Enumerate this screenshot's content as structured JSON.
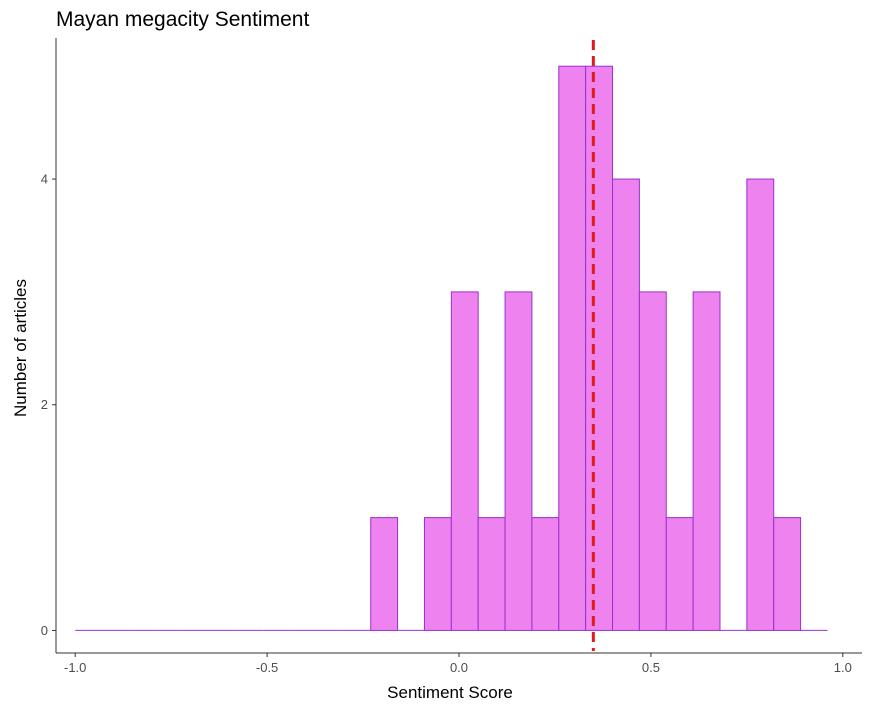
{
  "chart_data": {
    "type": "histogram",
    "title": "Mayan megacity Sentiment",
    "xlabel": "Sentiment Score",
    "ylabel": "Number of articles",
    "xlim": [
      -1.05,
      1.05
    ],
    "ylim": [
      -0.2,
      5.25
    ],
    "x_ticks": [
      -1.0,
      -0.5,
      0.0,
      0.5,
      1.0
    ],
    "x_tick_labels": [
      "-1.0",
      "-0.5",
      "0.0",
      "0.5",
      "1.0"
    ],
    "y_ticks": [
      0,
      2,
      4
    ],
    "y_tick_labels": [
      "0",
      "2",
      "4"
    ],
    "bin_width": 0.07,
    "bins": [
      {
        "x_start": -1.0,
        "x_end": -0.93,
        "count": 0
      },
      {
        "x_start": -0.93,
        "x_end": -0.86,
        "count": 0
      },
      {
        "x_start": -0.86,
        "x_end": -0.79,
        "count": 0
      },
      {
        "x_start": -0.79,
        "x_end": -0.72,
        "count": 0
      },
      {
        "x_start": -0.72,
        "x_end": -0.65,
        "count": 0
      },
      {
        "x_start": -0.65,
        "x_end": -0.58,
        "count": 0
      },
      {
        "x_start": -0.58,
        "x_end": -0.51,
        "count": 0
      },
      {
        "x_start": -0.51,
        "x_end": -0.44,
        "count": 0
      },
      {
        "x_start": -0.44,
        "x_end": -0.37,
        "count": 0
      },
      {
        "x_start": -0.37,
        "x_end": -0.3,
        "count": 0
      },
      {
        "x_start": -0.3,
        "x_end": -0.23,
        "count": 0
      },
      {
        "x_start": -0.23,
        "x_end": -0.16,
        "count": 1
      },
      {
        "x_start": -0.16,
        "x_end": -0.09,
        "count": 0
      },
      {
        "x_start": -0.09,
        "x_end": -0.02,
        "count": 1
      },
      {
        "x_start": -0.02,
        "x_end": 0.05,
        "count": 3
      },
      {
        "x_start": 0.05,
        "x_end": 0.12,
        "count": 1
      },
      {
        "x_start": 0.12,
        "x_end": 0.19,
        "count": 3
      },
      {
        "x_start": 0.19,
        "x_end": 0.26,
        "count": 1
      },
      {
        "x_start": 0.26,
        "x_end": 0.33,
        "count": 5
      },
      {
        "x_start": 0.33,
        "x_end": 0.4,
        "count": 5
      },
      {
        "x_start": 0.4,
        "x_end": 0.47,
        "count": 4
      },
      {
        "x_start": 0.47,
        "x_end": 0.54,
        "count": 3
      },
      {
        "x_start": 0.54,
        "x_end": 0.61,
        "count": 1
      },
      {
        "x_start": 0.61,
        "x_end": 0.68,
        "count": 3
      },
      {
        "x_start": 0.68,
        "x_end": 0.75,
        "count": 0
      },
      {
        "x_start": 0.75,
        "x_end": 0.82,
        "count": 4
      },
      {
        "x_start": 0.82,
        "x_end": 0.89,
        "count": 1
      },
      {
        "x_start": 0.89,
        "x_end": 0.96,
        "count": 0
      }
    ],
    "mean_line": {
      "x": 0.35,
      "style": "dashed"
    },
    "colors": {
      "bar_fill": "#ee82ee",
      "bar_stroke": "#9932cc",
      "mean_line": "#e31a1c",
      "axis": "#333333",
      "tick_text": "#4d4d4d",
      "text": "#000000"
    },
    "grid": false,
    "legend": "none"
  }
}
